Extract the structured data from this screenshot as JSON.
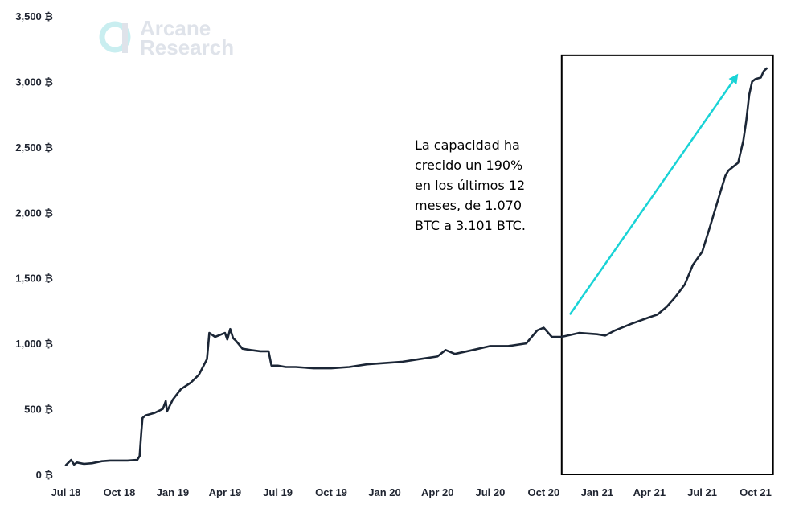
{
  "watermark": {
    "line1": "Arcane",
    "line2": "Research",
    "logo_icon": "arcane-logo-icon",
    "colors": {
      "logo_ring": "#c9eef0",
      "logo_bar": "#dfe3ea",
      "text": "#dfe3ea"
    }
  },
  "annotation": {
    "lines": [
      "La capacidad ha",
      "crecido un 190%",
      "en los últimos 12",
      "meses, de 1.070",
      "BTC a 3.101 BTC."
    ],
    "arrow_color": "#19d3d6",
    "box_color": "#000000"
  },
  "chart_data": {
    "type": "line",
    "title": "",
    "xlabel": "",
    "ylabel": "",
    "x_ticks": [
      "Jul 18",
      "Oct 18",
      "Jan 19",
      "Apr 19",
      "Jul 19",
      "Oct 19",
      "Jan 20",
      "Apr 20",
      "Jul 20",
      "Oct 20",
      "Jan 21",
      "Apr 21",
      "Jul 21",
      "Oct 21"
    ],
    "y_ticks": [
      "0 ₿",
      "500 ₿",
      "1,000 ₿",
      "1,500 ₿",
      "2,000 ₿",
      "2,500 ₿",
      "3,000 ₿",
      "3,500 ₿"
    ],
    "ylim": [
      0,
      3500
    ],
    "grid": false,
    "line_color": "#1b2636",
    "highlight_range": {
      "x_start": "2020-11-01",
      "x_end": "2021-10-31",
      "y_top": 3200
    },
    "arrow": {
      "from": [
        "2020-11-15",
        1220
      ],
      "to": [
        "2021-09-01",
        3060
      ]
    },
    "series": [
      {
        "x": [
          "2018-07-01",
          "2018-07-10",
          "2018-07-15",
          "2018-07-20",
          "2018-08-01",
          "2018-08-15",
          "2018-09-01",
          "2018-09-15",
          "2018-10-01",
          "2018-10-15",
          "2018-11-01",
          "2018-11-05",
          "2018-11-08",
          "2018-11-10",
          "2018-11-15",
          "2018-12-01",
          "2018-12-15",
          "2018-12-20",
          "2018-12-22",
          "2019-01-01",
          "2019-01-15",
          "2019-02-01",
          "2019-02-15",
          "2019-03-01",
          "2019-03-05",
          "2019-03-15",
          "2019-04-01",
          "2019-04-05",
          "2019-04-10",
          "2019-04-15",
          "2019-04-20",
          "2019-05-01",
          "2019-05-15",
          "2019-06-01",
          "2019-06-15",
          "2019-06-20",
          "2019-06-25",
          "2019-07-01",
          "2019-07-15",
          "2019-08-01",
          "2019-09-01",
          "2019-10-01",
          "2019-11-01",
          "2019-12-01",
          "2020-01-01",
          "2020-02-01",
          "2020-03-01",
          "2020-04-01",
          "2020-04-15",
          "2020-05-01",
          "2020-06-01",
          "2020-07-01",
          "2020-08-01",
          "2020-09-01",
          "2020-09-20",
          "2020-10-01",
          "2020-10-15",
          "2020-11-01",
          "2020-12-01",
          "2021-01-01",
          "2021-01-15",
          "2021-02-01",
          "2021-03-01",
          "2021-04-01",
          "2021-04-15",
          "2021-05-01",
          "2021-05-15",
          "2021-06-01",
          "2021-06-15",
          "2021-07-01",
          "2021-07-15",
          "2021-08-01",
          "2021-08-10",
          "2021-08-15",
          "2021-09-01",
          "2021-09-10",
          "2021-09-15",
          "2021-09-20",
          "2021-09-25",
          "2021-10-01",
          "2021-10-10",
          "2021-10-15",
          "2021-10-20"
        ],
        "y": [
          70,
          110,
          75,
          90,
          80,
          85,
          100,
          105,
          105,
          105,
          110,
          140,
          330,
          430,
          450,
          470,
          500,
          560,
          480,
          570,
          650,
          700,
          760,
          880,
          1080,
          1050,
          1080,
          1030,
          1110,
          1040,
          1020,
          960,
          950,
          940,
          940,
          830,
          830,
          830,
          820,
          820,
          810,
          810,
          820,
          840,
          850,
          860,
          880,
          900,
          950,
          920,
          950,
          980,
          980,
          1000,
          1100,
          1120,
          1050,
          1050,
          1080,
          1070,
          1060,
          1100,
          1150,
          1200,
          1220,
          1280,
          1350,
          1450,
          1600,
          1700,
          1900,
          2150,
          2280,
          2320,
          2380,
          2550,
          2700,
          2900,
          3000,
          3020,
          3030,
          3080,
          3101
        ]
      }
    ]
  }
}
